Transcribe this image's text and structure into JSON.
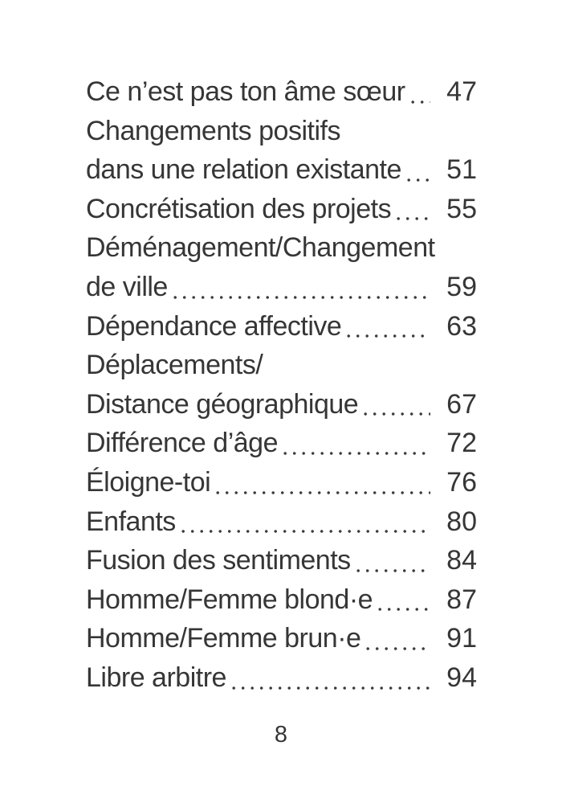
{
  "toc": {
    "entries": [
      {
        "lines": [
          "Ce n’est pas ton âme sœur"
        ],
        "page": "47"
      },
      {
        "lines": [
          "Changements positifs",
          "dans une relation existante"
        ],
        "page": "51"
      },
      {
        "lines": [
          "Concrétisation des projets"
        ],
        "page": "55"
      },
      {
        "lines": [
          "Déménagement/Changement",
          "de ville"
        ],
        "page": "59"
      },
      {
        "lines": [
          "Dépendance affective"
        ],
        "page": "63"
      },
      {
        "lines": [
          "Déplacements/",
          "Distance géographique"
        ],
        "page": "67"
      },
      {
        "lines": [
          "Différence d’âge"
        ],
        "page": "72"
      },
      {
        "lines": [
          "Éloigne-toi"
        ],
        "page": "76"
      },
      {
        "lines": [
          "Enfants"
        ],
        "page": "80"
      },
      {
        "lines": [
          "Fusion des sentiments"
        ],
        "page": "84"
      },
      {
        "lines": [
          "Homme/Femme blond·e"
        ],
        "page": "87"
      },
      {
        "lines": [
          "Homme/Femme brun·e"
        ],
        "page": "91"
      },
      {
        "lines": [
          "Libre arbitre"
        ],
        "page": "94"
      }
    ]
  },
  "folio": {
    "page_number": "8"
  },
  "colors": {
    "text": "#363636",
    "background": "#ffffff"
  }
}
